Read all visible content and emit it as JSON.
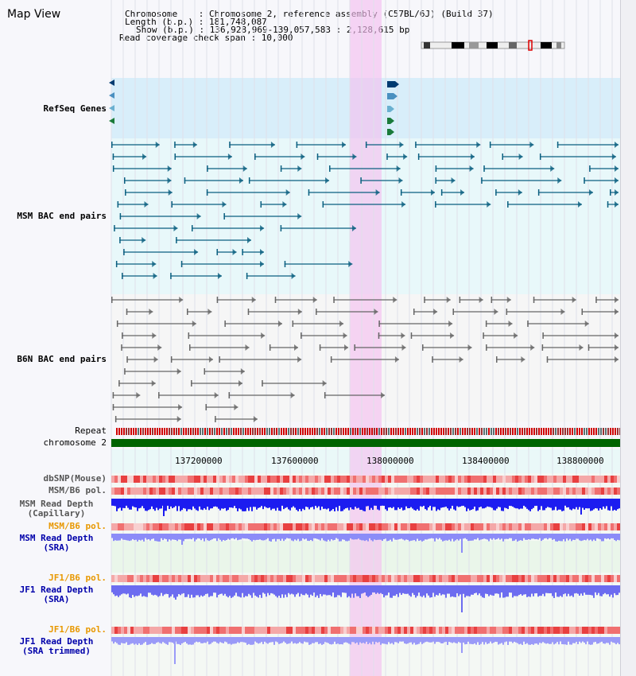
{
  "view_title": "Map View",
  "info": {
    "chromosome_label": "Chromosome    : Chromosome 2, reference assembly (C57BL/6J) (Build 37)",
    "length_label": "Length (b.p.) : 181,748,087",
    "show_label": "Show (b.p.) : 136,928,969-139,057,583 : 2,128,615 bp",
    "coverage_label": "Read coverage check span : 10,000"
  },
  "tracks": {
    "refseq": "RefSeq Genes",
    "msm_bac": "MSM BAC end pairs",
    "b6n_bac": "B6N BAC end pairs",
    "repeat": "Repeat",
    "chromosome": "chromosome 2",
    "dbsnp": "dbSNP(Mouse)",
    "msm_b6_pol": "MSM/B6 pol.",
    "msm_depth_cap_1": "MSM Read Depth",
    "msm_depth_cap_2": "(Capillary)",
    "msm_b6_pol_2": "MSM/B6 pol.",
    "msm_depth_sra_1": "MSM Read Depth",
    "msm_depth_sra_2": "(SRA)",
    "jf1_b6_pol": "JF1/B6 pol.",
    "jf1_depth_sra_1": "JF1 Read Depth",
    "jf1_depth_sra_2": "(SRA)",
    "jf1_b6_pol_2": "JF1/B6 pol.",
    "jf1_depth_trim_1": "JF1 Read Depth",
    "jf1_depth_trim_2": "(SRA trimmed)"
  },
  "axis_ticks": [
    "137200000",
    "137600000",
    "138000000",
    "138400000",
    "138800000"
  ],
  "colors": {
    "refseq_label": "#00008b",
    "msm_label": "#005f87",
    "b6n_label": "#555555",
    "orange_label": "#e89800",
    "blue_label": "#0000aa",
    "highlight": "#f5c0f0",
    "chromosome_bar": "#006400"
  }
}
